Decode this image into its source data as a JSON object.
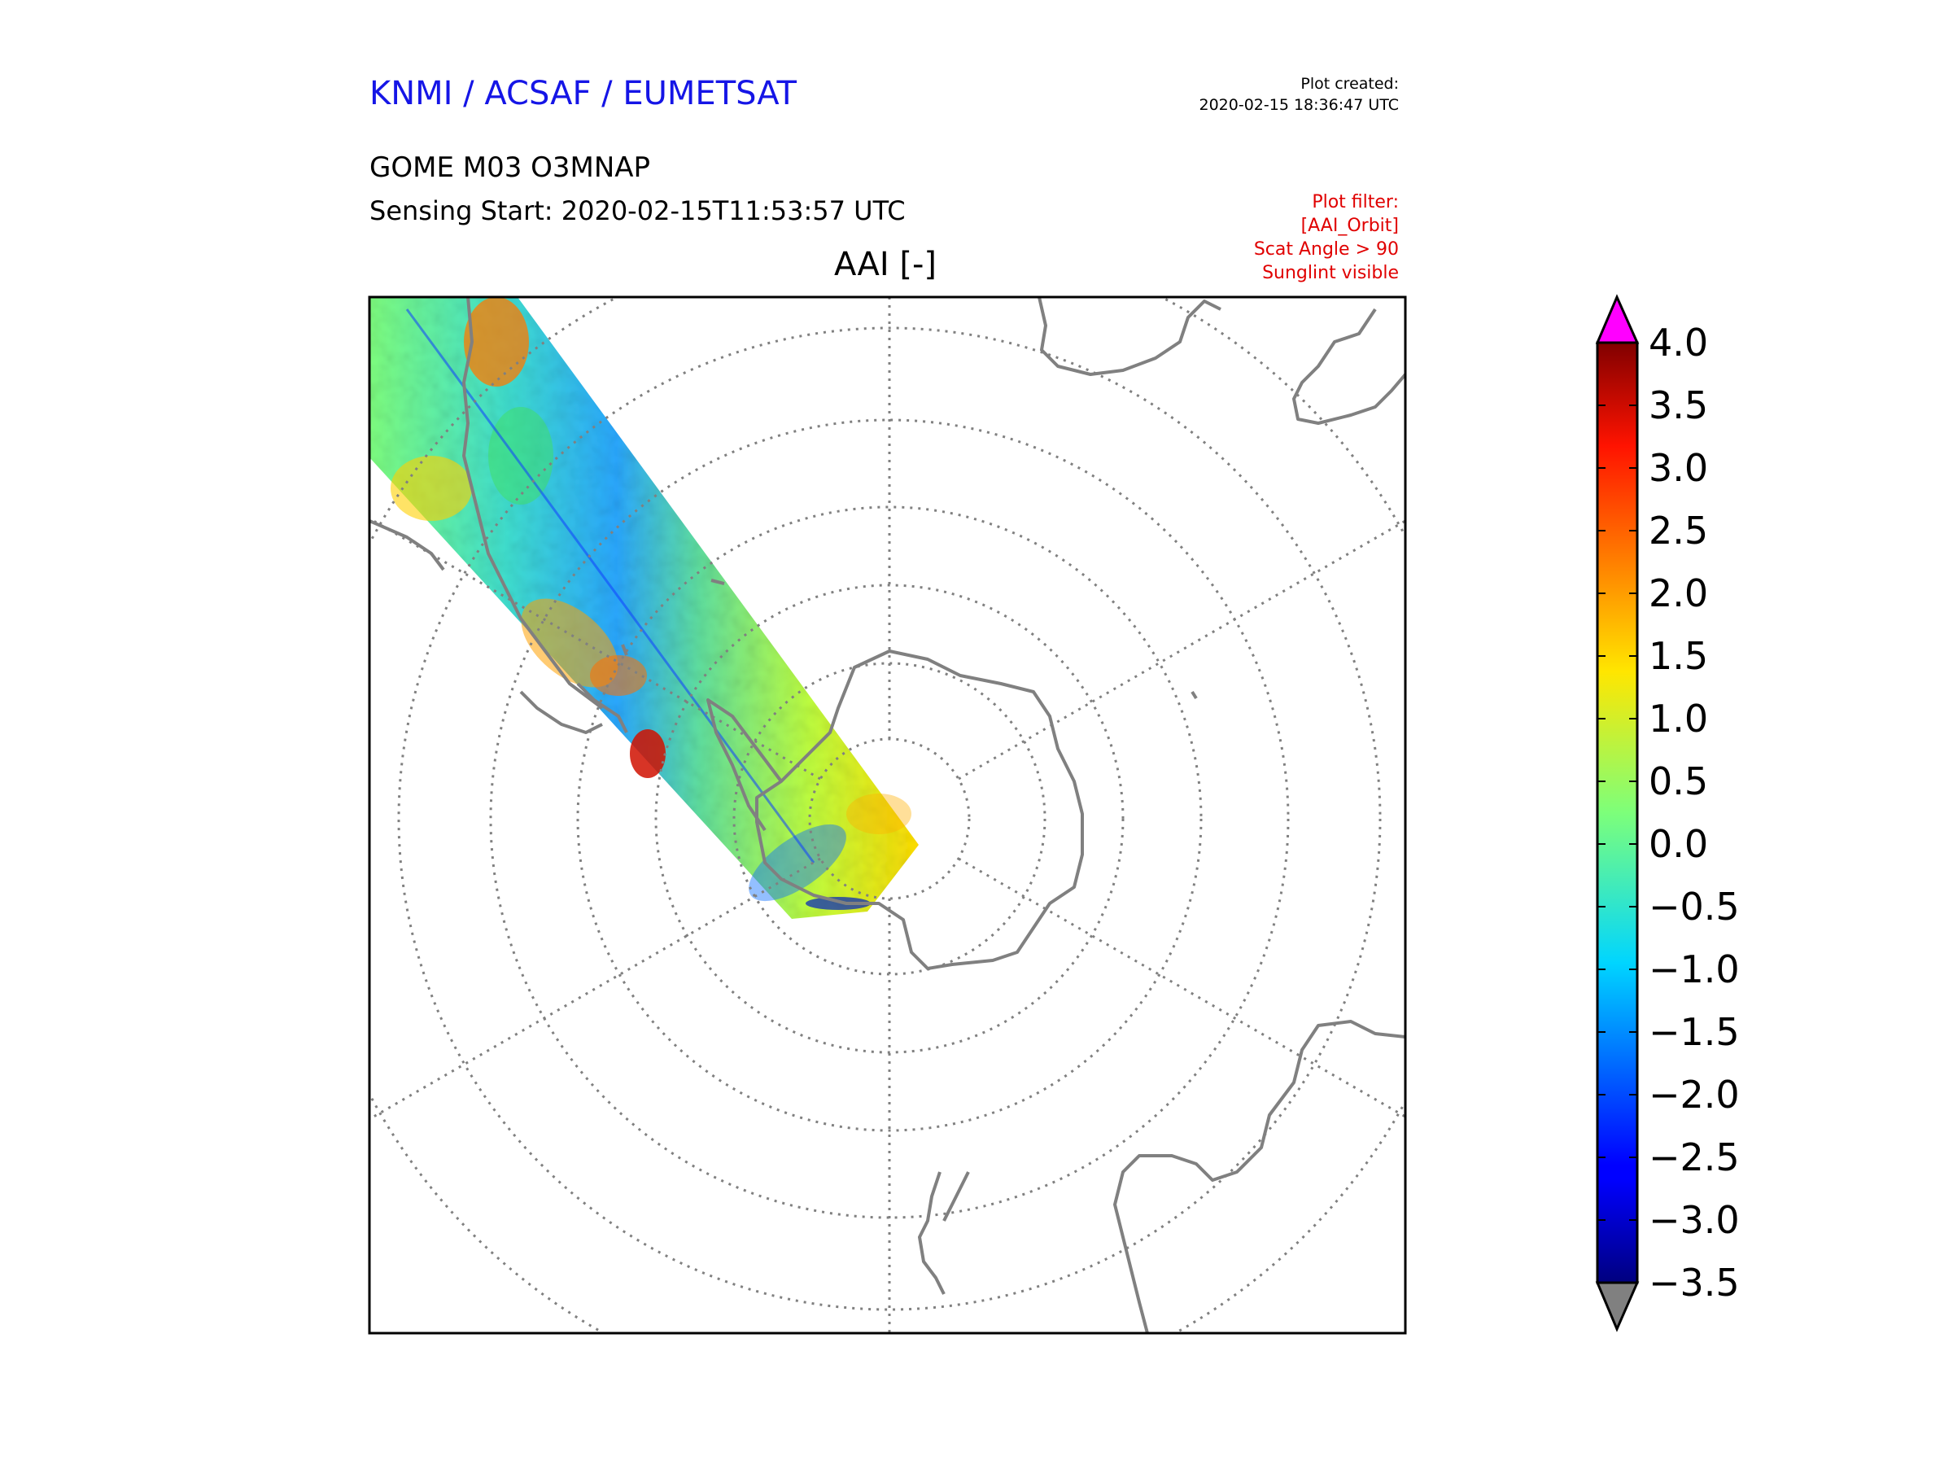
{
  "header": {
    "agency": "KNMI / ACSAF / EUMETSAT",
    "created_label": "Plot created:",
    "created_value": "2020-02-15 18:36:47 UTC",
    "product": "GOME M03 O3MNAP",
    "sensing_start": "Sensing Start: 2020-02-15T11:53:57 UTC",
    "filter_lines": [
      "Plot filter:",
      "[AAI_Orbit]",
      "Scat Angle > 90",
      "Sunglint visible"
    ]
  },
  "map": {
    "title": "AAI [-]",
    "projection": "south-polar-stereographic",
    "coastline_color": "#808080",
    "grid_color": "#808080"
  },
  "colorbar": {
    "ticks": [
      "4.0",
      "3.5",
      "3.0",
      "2.5",
      "2.0",
      "1.5",
      "1.0",
      "0.5",
      "0.0",
      "−0.5",
      "−1.0",
      "−1.5",
      "−2.0",
      "−2.5",
      "−3.0",
      "−3.5"
    ],
    "min": -3.5,
    "max": 4.0,
    "colormap": "jet",
    "over_color": "#ff00ff",
    "under_color": "#808080"
  }
}
